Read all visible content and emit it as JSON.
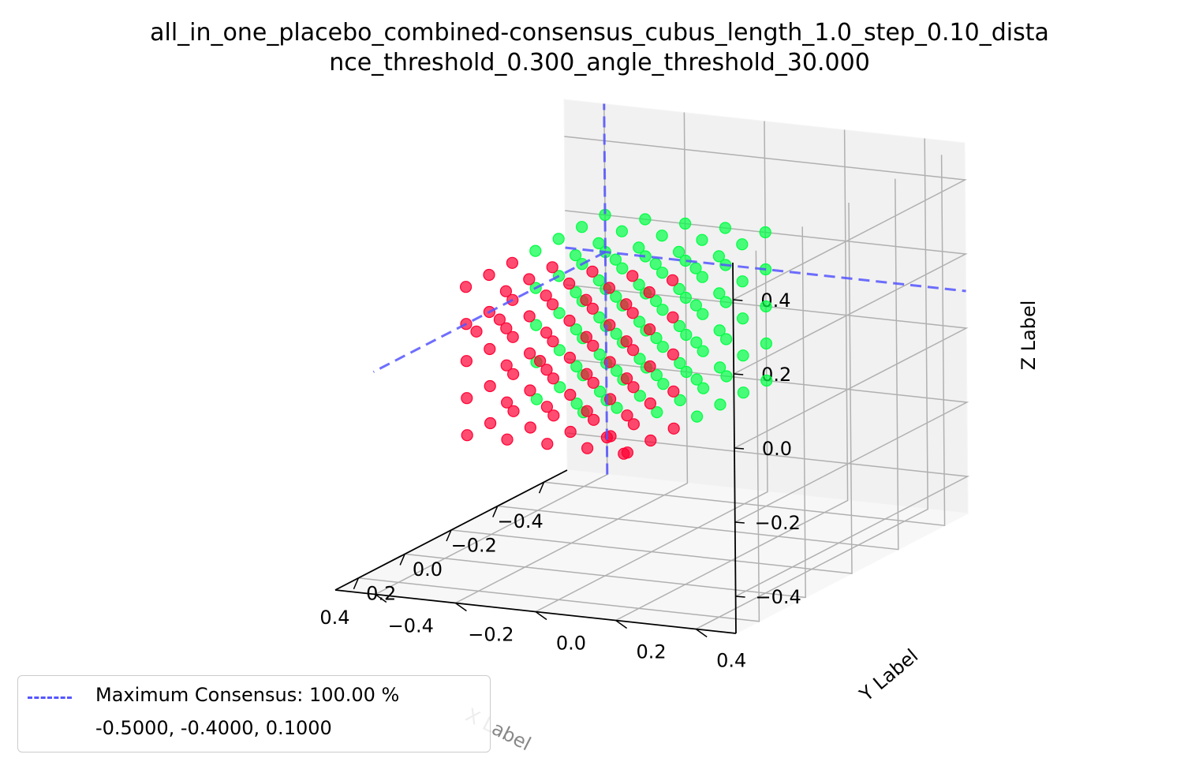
{
  "title_line1": "all_in_one_placebo_combined-consensus_cubus_length_1.0_step_0.10_dista",
  "title_line2": "nce_threshold_0.300_angle_threshold_30.000",
  "chart_data": {
    "type": "scatter",
    "projection": "3d",
    "xlabel": "X Label",
    "ylabel": "Y Label",
    "zlabel": "Z Label",
    "xlim": [
      -0.5,
      0.5
    ],
    "ylim": [
      -0.5,
      0.5
    ],
    "zlim": [
      -0.5,
      0.5
    ],
    "xticks": [
      "−0.4",
      "−0.2",
      "0.0",
      "0.2",
      "0.4"
    ],
    "yticks": [
      "−0.4",
      "−0.2",
      "0.0",
      "0.2",
      "0.4"
    ],
    "zticks": [
      "−0.4",
      "−0.2",
      "0.0",
      "0.2",
      "0.4"
    ],
    "grid": true,
    "colors": {
      "high": "#00ff44",
      "low": "#ff0033",
      "line": "#5555ff"
    },
    "maximum_point": [
      -0.5,
      -0.4,
      0.1
    ],
    "legend": {
      "placement": "lower-left",
      "line1": "Maximum Consensus: 100.00 %",
      "line2": "-0.5000, -0.4000, 0.1000"
    }
  }
}
